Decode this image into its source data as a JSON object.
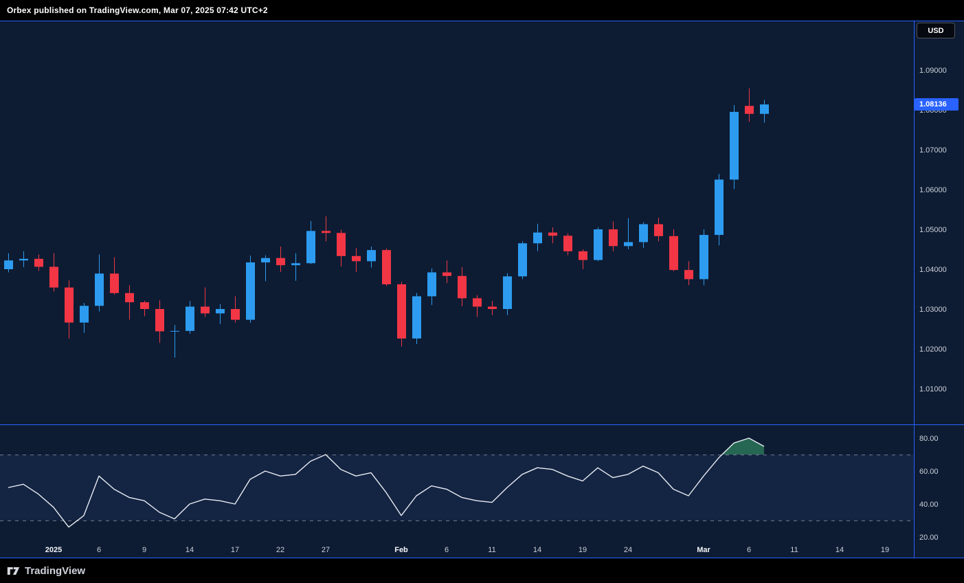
{
  "header": {
    "publish_text": "Orbex published on TradingView.com, Mar 07, 2025 07:42 UTC+2"
  },
  "price_scale": {
    "currency": "USD",
    "last_price": 1.08136,
    "last_price_label": "1.08136"
  },
  "time_axis": {
    "ticks": [
      {
        "index": 3,
        "label": "2025",
        "major": true
      },
      {
        "index": 6,
        "label": "6"
      },
      {
        "index": 9,
        "label": "9"
      },
      {
        "index": 12,
        "label": "14"
      },
      {
        "index": 15,
        "label": "17"
      },
      {
        "index": 18,
        "label": "22"
      },
      {
        "index": 21,
        "label": "27"
      },
      {
        "index": 26,
        "label": "Feb",
        "major": true
      },
      {
        "index": 29,
        "label": "6"
      },
      {
        "index": 32,
        "label": "11"
      },
      {
        "index": 35,
        "label": "14"
      },
      {
        "index": 38,
        "label": "19"
      },
      {
        "index": 41,
        "label": "24"
      },
      {
        "index": 46,
        "label": "Mar",
        "major": true
      },
      {
        "index": 49,
        "label": "6"
      },
      {
        "index": 52,
        "label": "11"
      },
      {
        "index": 55,
        "label": "14"
      },
      {
        "index": 58,
        "label": "19"
      }
    ]
  },
  "footer": {
    "logo_text": "TradingView"
  },
  "colors": {
    "background": "#0d1c33",
    "chrome": "#000000",
    "up": "#2d9cf0",
    "down": "#f23645",
    "accent": "#2962ff",
    "text": "#ccd1da",
    "text_major": "#f3f5f8",
    "rsi_line": "#e9edf2",
    "level_dash": "#8b919e",
    "band_fill": "rgba(118,139,255,0.08)",
    "overbought_fill": "rgba(60,166,110,0.55)"
  },
  "chart_data": [
    {
      "type": "candlestick",
      "pane": "main",
      "ylim": [
        1.001,
        1.102
      ],
      "y_ticks": [
        {
          "value": 1.09,
          "label": "1.09000"
        },
        {
          "value": 1.08,
          "label": "1.08000"
        },
        {
          "value": 1.07,
          "label": "1.07000"
        },
        {
          "value": 1.06,
          "label": "1.06000"
        },
        {
          "value": 1.05,
          "label": "1.05000"
        },
        {
          "value": 1.04,
          "label": "1.04000"
        },
        {
          "value": 1.03,
          "label": "1.03000"
        },
        {
          "value": 1.02,
          "label": "1.02000"
        },
        {
          "value": 1.01,
          "label": "1.01000"
        }
      ],
      "candles": [
        {
          "d": "Dec 26",
          "o": 1.04,
          "h": 1.044,
          "l": 1.0392,
          "c": 1.0422
        },
        {
          "d": "Dec 27",
          "o": 1.0422,
          "h": 1.0445,
          "l": 1.0405,
          "c": 1.0426
        },
        {
          "d": "Dec 30",
          "o": 1.0426,
          "h": 1.0437,
          "l": 1.0396,
          "c": 1.0406
        },
        {
          "d": "Dec 31",
          "o": 1.0406,
          "h": 1.044,
          "l": 1.0344,
          "c": 1.0354
        },
        {
          "d": "Jan 2",
          "o": 1.0354,
          "h": 1.0372,
          "l": 1.0226,
          "c": 1.0266
        },
        {
          "d": "Jan 3",
          "o": 1.0266,
          "h": 1.0315,
          "l": 1.024,
          "c": 1.0308
        },
        {
          "d": "Jan 6",
          "o": 1.0308,
          "h": 1.0437,
          "l": 1.0294,
          "c": 1.0389
        },
        {
          "d": "Jan 7",
          "o": 1.0389,
          "h": 1.043,
          "l": 1.0336,
          "c": 1.034
        },
        {
          "d": "Jan 8",
          "o": 1.034,
          "h": 1.036,
          "l": 1.0273,
          "c": 1.0317
        },
        {
          "d": "Jan 9",
          "o": 1.0317,
          "h": 1.0321,
          "l": 1.0282,
          "c": 1.03
        },
        {
          "d": "Jan 10",
          "o": 1.03,
          "h": 1.0322,
          "l": 1.0215,
          "c": 1.0244
        },
        {
          "d": "Jan 13",
          "o": 1.0244,
          "h": 1.026,
          "l": 1.0178,
          "c": 1.0245
        },
        {
          "d": "Jan 14",
          "o": 1.0245,
          "h": 1.032,
          "l": 1.0238,
          "c": 1.0306
        },
        {
          "d": "Jan 15",
          "o": 1.0306,
          "h": 1.0354,
          "l": 1.028,
          "c": 1.0289
        },
        {
          "d": "Jan 16",
          "o": 1.0289,
          "h": 1.0312,
          "l": 1.0262,
          "c": 1.03
        },
        {
          "d": "Jan 17",
          "o": 1.03,
          "h": 1.0332,
          "l": 1.0266,
          "c": 1.0273
        },
        {
          "d": "Jan 20",
          "o": 1.0273,
          "h": 1.0434,
          "l": 1.0265,
          "c": 1.0417
        },
        {
          "d": "Jan 21",
          "o": 1.0417,
          "h": 1.0435,
          "l": 1.037,
          "c": 1.0428
        },
        {
          "d": "Jan 22",
          "o": 1.0428,
          "h": 1.0457,
          "l": 1.0393,
          "c": 1.041
        },
        {
          "d": "Jan 23",
          "o": 1.041,
          "h": 1.044,
          "l": 1.0371,
          "c": 1.0415
        },
        {
          "d": "Jan 24",
          "o": 1.0415,
          "h": 1.0521,
          "l": 1.0413,
          "c": 1.0496
        },
        {
          "d": "Jan 27",
          "o": 1.0496,
          "h": 1.0533,
          "l": 1.047,
          "c": 1.0491
        },
        {
          "d": "Jan 28",
          "o": 1.0491,
          "h": 1.0499,
          "l": 1.0407,
          "c": 1.0433
        },
        {
          "d": "Jan 29",
          "o": 1.0433,
          "h": 1.0453,
          "l": 1.0393,
          "c": 1.042
        },
        {
          "d": "Jan 30",
          "o": 1.042,
          "h": 1.0457,
          "l": 1.0404,
          "c": 1.0448
        },
        {
          "d": "Jan 31",
          "o": 1.0448,
          "h": 1.0452,
          "l": 1.0358,
          "c": 1.0362
        },
        {
          "d": "Feb 3",
          "o": 1.0362,
          "h": 1.0368,
          "l": 1.0206,
          "c": 1.0226
        },
        {
          "d": "Feb 4",
          "o": 1.0226,
          "h": 1.034,
          "l": 1.0212,
          "c": 1.0332
        },
        {
          "d": "Feb 5",
          "o": 1.0332,
          "h": 1.0402,
          "l": 1.031,
          "c": 1.0392
        },
        {
          "d": "Feb 6",
          "o": 1.0392,
          "h": 1.0422,
          "l": 1.0365,
          "c": 1.0383
        },
        {
          "d": "Feb 7",
          "o": 1.0383,
          "h": 1.0405,
          "l": 1.0307,
          "c": 1.0327
        },
        {
          "d": "Feb 10",
          "o": 1.0327,
          "h": 1.0335,
          "l": 1.028,
          "c": 1.0306
        },
        {
          "d": "Feb 11",
          "o": 1.0306,
          "h": 1.032,
          "l": 1.0285,
          "c": 1.03
        },
        {
          "d": "Feb 12",
          "o": 1.03,
          "h": 1.039,
          "l": 1.0285,
          "c": 1.0382
        },
        {
          "d": "Feb 13",
          "o": 1.0382,
          "h": 1.047,
          "l": 1.0375,
          "c": 1.0465
        },
        {
          "d": "Feb 14",
          "o": 1.0465,
          "h": 1.0514,
          "l": 1.0445,
          "c": 1.0492
        },
        {
          "d": "Feb 17",
          "o": 1.0492,
          "h": 1.0505,
          "l": 1.0465,
          "c": 1.0484
        },
        {
          "d": "Feb 18",
          "o": 1.0484,
          "h": 1.049,
          "l": 1.0435,
          "c": 1.0445
        },
        {
          "d": "Feb 19",
          "o": 1.0445,
          "h": 1.045,
          "l": 1.04,
          "c": 1.0423
        },
        {
          "d": "Feb 20",
          "o": 1.0423,
          "h": 1.0505,
          "l": 1.042,
          "c": 1.05
        },
        {
          "d": "Feb 21",
          "o": 1.05,
          "h": 1.052,
          "l": 1.0445,
          "c": 1.0458
        },
        {
          "d": "Feb 24",
          "o": 1.0458,
          "h": 1.0528,
          "l": 1.045,
          "c": 1.0468
        },
        {
          "d": "Feb 25",
          "o": 1.0468,
          "h": 1.0518,
          "l": 1.0453,
          "c": 1.0513
        },
        {
          "d": "Feb 26",
          "o": 1.0513,
          "h": 1.0529,
          "l": 1.047,
          "c": 1.0483
        },
        {
          "d": "Feb 27",
          "o": 1.0483,
          "h": 1.05,
          "l": 1.0395,
          "c": 1.0398
        },
        {
          "d": "Feb 28",
          "o": 1.0398,
          "h": 1.042,
          "l": 1.036,
          "c": 1.0375
        },
        {
          "d": "Mar 3",
          "o": 1.0375,
          "h": 1.05,
          "l": 1.036,
          "c": 1.0486
        },
        {
          "d": "Mar 4",
          "o": 1.0486,
          "h": 1.0639,
          "l": 1.046,
          "c": 1.0625
        },
        {
          "d": "Mar 5",
          "o": 1.0625,
          "h": 1.0812,
          "l": 1.0601,
          "c": 1.0795
        },
        {
          "d": "Mar 6",
          "o": 1.081,
          "h": 1.0854,
          "l": 1.077,
          "c": 1.079
        },
        {
          "d": "Mar 7",
          "o": 1.079,
          "h": 1.0825,
          "l": 1.0768,
          "c": 1.08136
        }
      ]
    },
    {
      "type": "line",
      "name": "RSI",
      "pane": "lower",
      "ylim": [
        17,
        88
      ],
      "y_ticks": [
        {
          "value": 80,
          "label": "80.00"
        },
        {
          "value": 60,
          "label": "60.00"
        },
        {
          "value": 40,
          "label": "40.00"
        },
        {
          "value": 20,
          "label": "20.00"
        }
      ],
      "levels": {
        "overbought": 70,
        "oversold": 30
      },
      "values": [
        50,
        52,
        46,
        38,
        26,
        33,
        57,
        49,
        44,
        42,
        35,
        31,
        40,
        43,
        42,
        40,
        55,
        60,
        57,
        58,
        66,
        70,
        61,
        57,
        59,
        47,
        33,
        45,
        51,
        49,
        44,
        42,
        41,
        50,
        58,
        62,
        61,
        57,
        54,
        62,
        56,
        58,
        63,
        59,
        49,
        45,
        57,
        68,
        77,
        80,
        75
      ]
    }
  ]
}
